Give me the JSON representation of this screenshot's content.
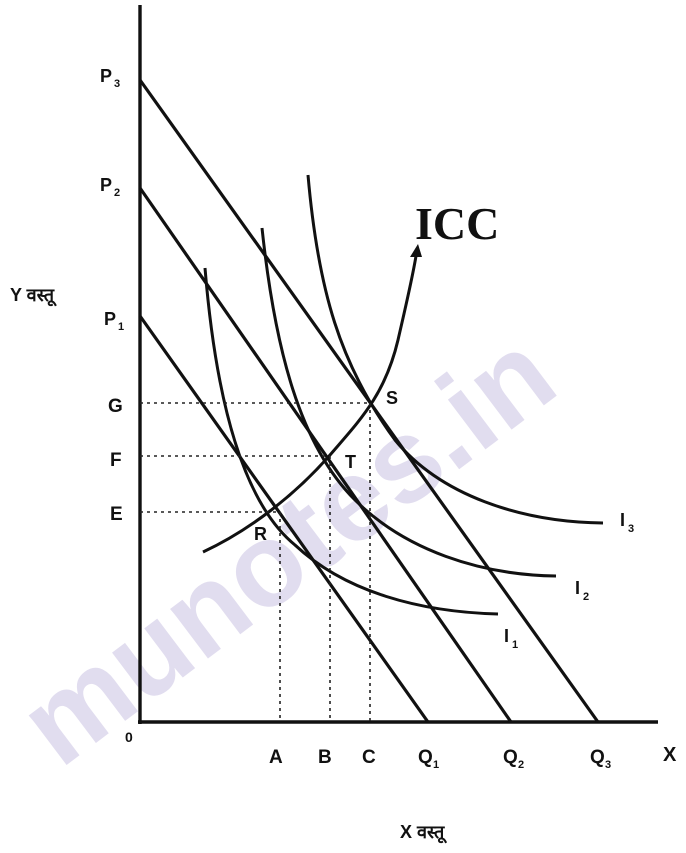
{
  "axis": {
    "origin": "0",
    "x_end": "X",
    "x_title": "X वस्तू",
    "y_title": "Y वस्तू"
  },
  "y_ticks": {
    "p3": "P",
    "p3_sub": "3",
    "p2": "P",
    "p2_sub": "2",
    "p1": "P",
    "p1_sub": "1",
    "g": "G",
    "f": "F",
    "e": "E"
  },
  "x_ticks": {
    "a": "A",
    "b": "B",
    "c": "C",
    "q1": "Q",
    "q1_sub": "1",
    "q2": "Q",
    "q2_sub": "2",
    "q3": "Q",
    "q3_sub": "3"
  },
  "points": {
    "s": "S",
    "t": "T",
    "r": "R"
  },
  "curves": {
    "icc": "ICC",
    "i1": "I",
    "i1_sub": "1",
    "i2": "I",
    "i2_sub": "2",
    "i3": "I",
    "i3_sub": "3"
  },
  "watermark": "munotes.in"
}
